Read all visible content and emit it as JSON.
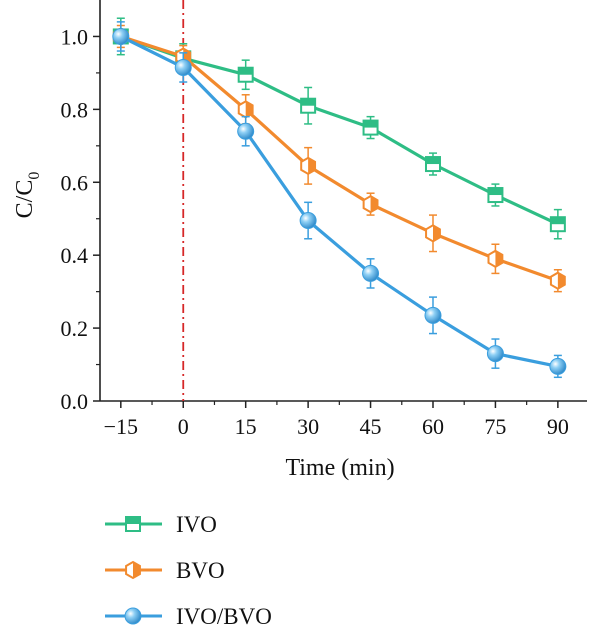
{
  "chart_data": {
    "type": "line",
    "xlabel": "Time (min)",
    "ylabel": "C/C",
    "ylabel_subscript": "0",
    "x": [
      -15,
      0,
      15,
      30,
      45,
      60,
      75,
      90
    ],
    "xticks": [
      "−15",
      "0",
      "15",
      "30",
      "45",
      "60",
      "75",
      "90"
    ],
    "yticks": [
      "0.0",
      "0.2",
      "0.4",
      "0.6",
      "0.8",
      "1.0"
    ],
    "xlim": [
      -20,
      97
    ],
    "ylim": [
      0,
      1.1
    ],
    "grid": false,
    "legend_position": "bottom",
    "reference_line": {
      "x": 0,
      "color": "#d62728",
      "style": "dash-dot"
    },
    "series": [
      {
        "name": "IVO",
        "color": "#2ebd85",
        "marker": "square-half",
        "values": [
          1.0,
          0.94,
          0.895,
          0.81,
          0.75,
          0.65,
          0.565,
          0.485
        ],
        "errors": [
          0.05,
          0.04,
          0.04,
          0.05,
          0.03,
          0.03,
          0.03,
          0.04
        ]
      },
      {
        "name": "BVO",
        "color": "#f28a2e",
        "marker": "hexagon-half",
        "values": [
          1.0,
          0.945,
          0.8,
          0.645,
          0.54,
          0.46,
          0.39,
          0.33
        ],
        "errors": [
          0.03,
          0.03,
          0.04,
          0.05,
          0.03,
          0.05,
          0.04,
          0.03
        ]
      },
      {
        "name": "IVO/BVO",
        "color": "#3a9ede",
        "marker": "sphere",
        "values": [
          1.0,
          0.915,
          0.74,
          0.495,
          0.35,
          0.235,
          0.13,
          0.095
        ],
        "errors": [
          0.04,
          0.04,
          0.04,
          0.05,
          0.04,
          0.05,
          0.04,
          0.03
        ]
      }
    ]
  }
}
